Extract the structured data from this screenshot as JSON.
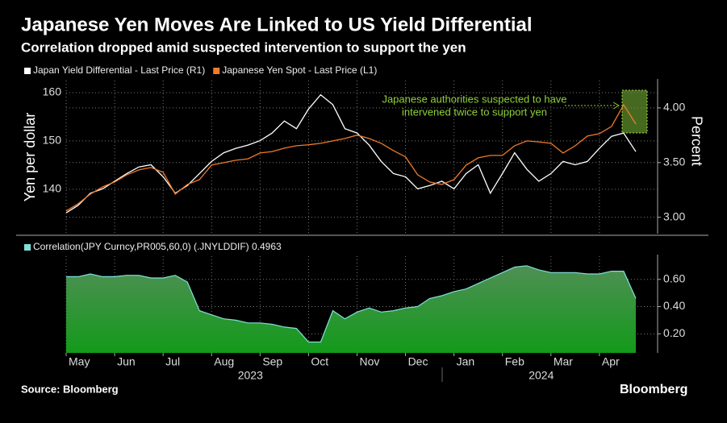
{
  "source": "Source: Bloomberg",
  "logo": "Bloomberg",
  "chart_data": [
    {
      "type": "line",
      "title": "Japanese Yen Moves Are Linked to US Yield Differential",
      "subtitle": "Correlation dropped amid suspected intervention to support the yen",
      "ylabel": "Yen per dollar",
      "y2label": "Percent",
      "annotation": [
        "Japanese authorities suspected to have",
        "intervened twice to support yen"
      ],
      "xlim": [
        0,
        12.2
      ],
      "ylim": [
        130.8,
        162.5
      ],
      "yticks": [
        140,
        150,
        160
      ],
      "y2lim": [
        2.85,
        4.25
      ],
      "y2ticks": [
        {
          "value": 3,
          "label": "3.00"
        },
        {
          "value": 3.5,
          "label": "3.50"
        },
        {
          "value": 4,
          "label": "4.00"
        }
      ],
      "x": [
        0,
        0.25,
        0.5,
        0.75,
        1,
        1.25,
        1.5,
        1.75,
        2,
        2.25,
        2.5,
        2.75,
        3,
        3.25,
        3.5,
        3.75,
        4,
        4.25,
        4.5,
        4.75,
        5,
        5.25,
        5.5,
        5.75,
        6,
        6.25,
        6.5,
        6.75,
        7,
        7.25,
        7.5,
        7.75,
        8,
        8.25,
        8.5,
        8.75,
        9,
        9.25,
        9.5,
        9.75,
        10,
        10.25,
        10.5,
        10.75,
        11,
        11.25,
        11.5,
        11.75
      ],
      "series": [
        {
          "name": "Japan Yield Differential - Last Price (R1)",
          "color": "#ffffff",
          "axis": "y2",
          "values": [
            3.04,
            3.11,
            3.22,
            3.26,
            3.33,
            3.4,
            3.46,
            3.48,
            3.37,
            3.22,
            3.29,
            3.4,
            3.51,
            3.59,
            3.63,
            3.66,
            3.7,
            3.77,
            3.88,
            3.81,
            3.99,
            4.12,
            4.03,
            3.81,
            3.77,
            3.66,
            3.51,
            3.4,
            3.37,
            3.26,
            3.29,
            3.33,
            3.26,
            3.4,
            3.48,
            3.22,
            3.4,
            3.59,
            3.44,
            3.33,
            3.4,
            3.51,
            3.48,
            3.51,
            3.63,
            3.74,
            3.77,
            3.6
          ]
        },
        {
          "name": "Japanese Yen Spot - Last Price (L1)",
          "color": "#f07a2a",
          "values": [
            135.5,
            137,
            139,
            140.5,
            141.5,
            143,
            144,
            144.5,
            143.5,
            139,
            141,
            142,
            145,
            145.5,
            146,
            146.3,
            147.5,
            147.8,
            148.5,
            149,
            149.2,
            149.5,
            150,
            150.5,
            151.2,
            150.5,
            149.5,
            148,
            146.7,
            143,
            141.5,
            141,
            142,
            145,
            146.5,
            147,
            147,
            149,
            150,
            149.8,
            149.5,
            147.5,
            149,
            151,
            151.5,
            153,
            157.5,
            153.5
          ]
        }
      ]
    },
    {
      "type": "area",
      "xlim": [
        0,
        12.2
      ],
      "ylim": [
        0.06,
        0.77
      ],
      "yticks": [
        {
          "value": 0.2,
          "label": "0.20"
        },
        {
          "value": 0.4,
          "label": "0.40"
        },
        {
          "value": 0.6,
          "label": "0.60"
        }
      ],
      "xticks": [
        {
          "value": 0,
          "label": "May"
        },
        {
          "value": 1,
          "label": "Jun"
        },
        {
          "value": 2,
          "label": "Jul"
        },
        {
          "value": 3,
          "label": "Aug"
        },
        {
          "value": 4,
          "label": "Sep"
        },
        {
          "value": 5,
          "label": "Oct"
        },
        {
          "value": 6,
          "label": "Nov"
        },
        {
          "value": 7,
          "label": "Dec"
        },
        {
          "value": 8,
          "label": "Jan"
        },
        {
          "value": 9,
          "label": "Feb"
        },
        {
          "value": 10,
          "label": "Mar"
        },
        {
          "value": 11,
          "label": "Apr"
        }
      ],
      "x_group_labels": [
        {
          "value": 3.8,
          "label": "2023"
        },
        {
          "value": 9.8,
          "label": "2024"
        }
      ],
      "x": [
        0,
        0.25,
        0.5,
        0.75,
        1,
        1.25,
        1.5,
        1.75,
        2,
        2.25,
        2.5,
        2.75,
        3,
        3.25,
        3.5,
        3.75,
        4,
        4.25,
        4.5,
        4.75,
        5,
        5.25,
        5.5,
        5.75,
        6,
        6.25,
        6.5,
        6.75,
        7,
        7.25,
        7.5,
        7.75,
        8,
        8.25,
        8.5,
        8.75,
        9,
        9.25,
        9.5,
        9.75,
        10,
        10.25,
        10.5,
        10.75,
        11,
        11.25,
        11.5,
        11.75
      ],
      "series": [
        {
          "name": "Correlation(JPY Curncy,PR005,60,0) (.JNYLDDIF) 0.4963",
          "color": "#7fe0d8",
          "values": [
            0.62,
            0.62,
            0.64,
            0.62,
            0.62,
            0.63,
            0.63,
            0.61,
            0.61,
            0.63,
            0.58,
            0.37,
            0.34,
            0.31,
            0.3,
            0.28,
            0.28,
            0.27,
            0.25,
            0.24,
            0.14,
            0.14,
            0.37,
            0.31,
            0.36,
            0.39,
            0.36,
            0.37,
            0.39,
            0.4,
            0.46,
            0.48,
            0.51,
            0.53,
            0.57,
            0.61,
            0.65,
            0.69,
            0.7,
            0.67,
            0.65,
            0.65,
            0.65,
            0.64,
            0.64,
            0.66,
            0.66,
            0.46
          ]
        }
      ]
    }
  ]
}
